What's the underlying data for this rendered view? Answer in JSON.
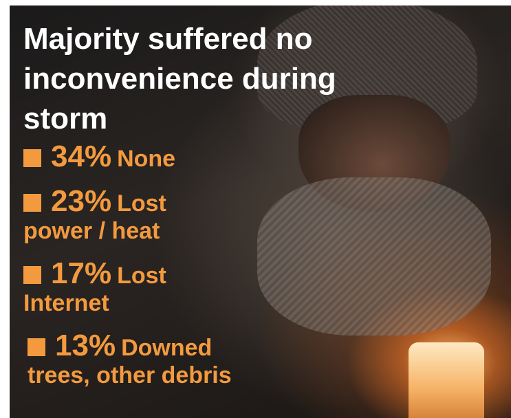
{
  "title": "Majority suffered no inconvenience during storm",
  "items": [
    {
      "percent": "34%",
      "label": "None"
    },
    {
      "percent": "23%",
      "label": "Lost power / heat"
    },
    {
      "percent": "17%",
      "label": "Lost Internet"
    },
    {
      "percent": "13%",
      "label": "Downed trees, other debris"
    }
  ]
}
